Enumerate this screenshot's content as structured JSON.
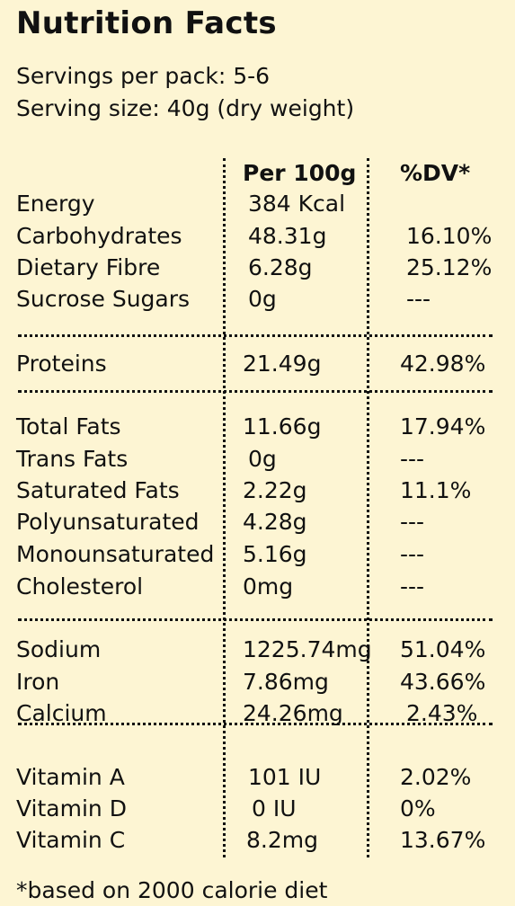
{
  "title": "Nutrition Facts",
  "servings_per_pack": "Servings per pack: 5-6",
  "serving_size": "Serving size: 40g (dry weight)",
  "columns": {
    "per100g": "Per 100g",
    "dv": "%DV*"
  },
  "rows": [
    {
      "name": "Energy",
      "per100g": "384 Kcal",
      "dv": ""
    },
    {
      "name": "Carbohydrates",
      "per100g": "48.31g",
      "dv": "16.10%"
    },
    {
      "name": "Dietary Fibre",
      "per100g": "6.28g",
      "dv": "25.12%"
    },
    {
      "name": "Sucrose Sugars",
      "per100g": "0g",
      "dv": "---"
    },
    {
      "name": "Proteins",
      "per100g": "21.49g",
      "dv": "42.98%"
    },
    {
      "name": "Total Fats",
      "per100g": "11.66g",
      "dv": "17.94%"
    },
    {
      "name": "Trans Fats",
      "per100g": "0g",
      "dv": "---"
    },
    {
      "name": "Saturated Fats",
      "per100g": "2.22g",
      "dv": "11.1%"
    },
    {
      "name": "Polyunsaturated",
      "per100g": "4.28g",
      "dv": "---"
    },
    {
      "name": "Monounsaturated",
      "per100g": "5.16g",
      "dv": "---"
    },
    {
      "name": "Cholesterol",
      "per100g": "0mg",
      "dv": "---"
    },
    {
      "name": "Sodium",
      "per100g": "1225.74mg",
      "dv": "51.04%"
    },
    {
      "name": "Iron",
      "per100g": "7.86mg",
      "dv": "43.66%"
    },
    {
      "name": "Calcium",
      "per100g": "24.26mg",
      "dv": "2.43%"
    },
    {
      "name": "Vitamin A",
      "per100g": "101 IU",
      "dv": "2.02%"
    },
    {
      "name": "Vitamin D",
      "per100g": "0 IU",
      "dv": "0%"
    },
    {
      "name": "Vitamin C",
      "per100g": "8.2mg",
      "dv": "13.67%"
    }
  ],
  "footnote": "*based on 2000 calorie diet",
  "colors": {
    "background": "#fdf5d3",
    "text": "#111111"
  }
}
